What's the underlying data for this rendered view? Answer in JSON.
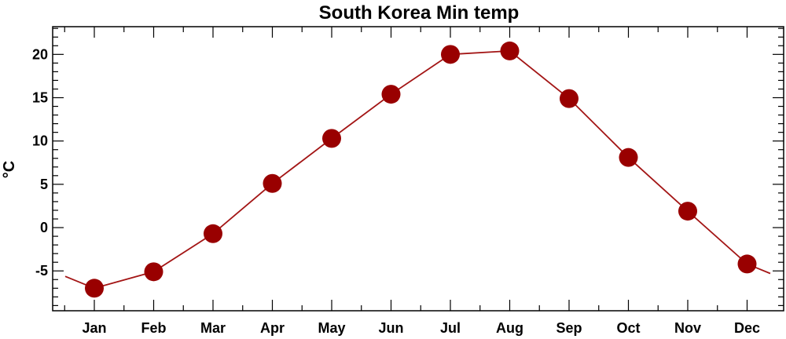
{
  "chart_data": {
    "type": "line",
    "title": "South Korea Min temp",
    "ylabel": "°C",
    "xlabel": "",
    "categories": [
      "Jan",
      "Feb",
      "Mar",
      "Apr",
      "May",
      "Jun",
      "Jul",
      "Aug",
      "Sep",
      "Oct",
      "Nov",
      "Dec"
    ],
    "series": [
      {
        "values": [
          -7.0,
          -5.1,
          -0.7,
          5.1,
          10.3,
          15.4,
          20.0,
          20.4,
          14.9,
          8.1,
          1.9,
          -4.2
        ]
      }
    ],
    "yticks": [
      -5,
      0,
      5,
      10,
      15,
      20
    ],
    "ylim": [
      -9.6,
      23.2
    ],
    "grid": false,
    "line_color": "#a31515",
    "marker_color": "#990000"
  }
}
